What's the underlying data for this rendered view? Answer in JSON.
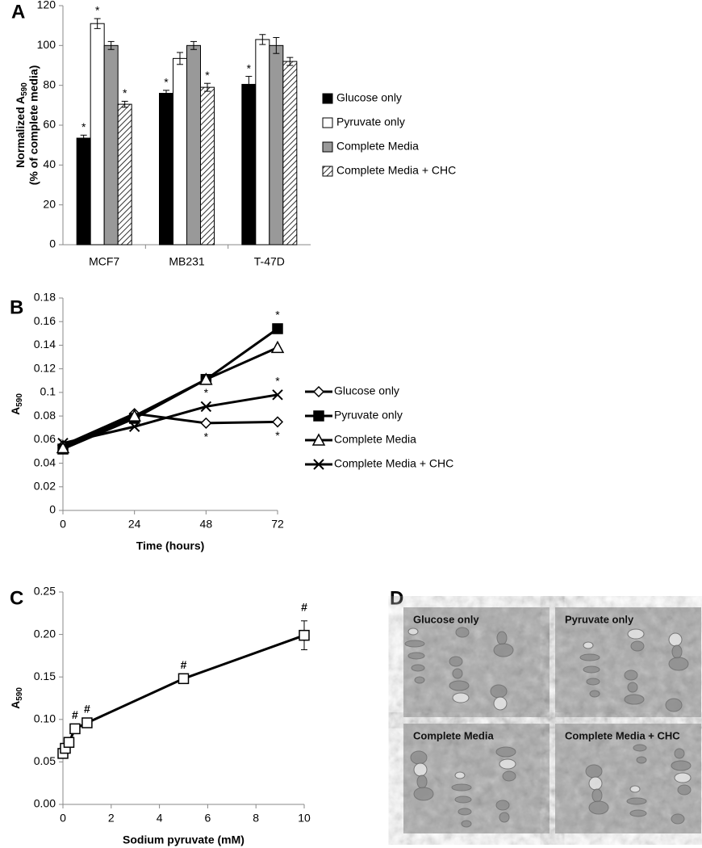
{
  "chart_data": [
    {
      "type": "bar",
      "panel": "A",
      "y_label": {
        "main": "Normalized A",
        "sub": "590",
        "line2": "(% of complete media)"
      },
      "categories": [
        "MCF7",
        "MB231",
        "T-47D"
      ],
      "series": [
        {
          "name": "Glucose only",
          "color": "#000000",
          "values": [
            53.5,
            76,
            80.5
          ],
          "errors": [
            1.5,
            1.5,
            4
          ],
          "sig_labels": [
            "*",
            "*",
            "*"
          ]
        },
        {
          "name": "Pyruvate only",
          "color": "#ffffff",
          "values": [
            111,
            93.5,
            103
          ],
          "errors": [
            2.5,
            3,
            2.5
          ],
          "sig_labels": [
            "*",
            null,
            null
          ]
        },
        {
          "name": "Complete Media",
          "color": "#999999",
          "values": [
            100,
            100,
            100
          ],
          "errors": [
            2,
            2,
            4
          ],
          "sig_labels": [
            null,
            null,
            null
          ]
        },
        {
          "name": "Complete Media + CHC",
          "color": "#ffffff",
          "pattern": "hatch",
          "values": [
            70.5,
            79,
            92
          ],
          "errors": [
            1.5,
            2,
            2
          ],
          "sig_labels": [
            "*",
            "*",
            null
          ]
        }
      ],
      "ylim": [
        0,
        120
      ],
      "yticks": [
        0,
        20,
        40,
        60,
        80,
        100,
        120
      ],
      "legend": "right"
    },
    {
      "type": "line",
      "panel": "B",
      "y_label": {
        "main": "A",
        "sub": "590"
      },
      "x_label": "Time (hours)",
      "x": [
        0,
        24,
        48,
        72
      ],
      "series": [
        {
          "name": "Glucose only",
          "color": "#000000",
          "marker": "diamond-open",
          "values": [
            0.055,
            0.082,
            0.074,
            0.075
          ],
          "sig_labels": [
            null,
            null,
            "*",
            "*"
          ],
          "sig_side": "below"
        },
        {
          "name": "Pyruvate only",
          "color": "#000000",
          "marker": "square-filled",
          "values": [
            0.052,
            0.078,
            0.111,
            0.154
          ],
          "sig_labels": [
            null,
            null,
            null,
            "*"
          ],
          "sig_side": "above"
        },
        {
          "name": "Complete Media",
          "color": "#000000",
          "marker": "triangle-open",
          "values": [
            0.053,
            0.08,
            0.111,
            0.138
          ],
          "sig_labels": [
            null,
            null,
            null,
            null
          ],
          "sig_side": "above"
        },
        {
          "name": "Complete Media + CHC",
          "color": "#000000",
          "marker": "x",
          "values": [
            0.057,
            0.071,
            0.088,
            0.098
          ],
          "sig_labels": [
            null,
            null,
            "*",
            "*"
          ],
          "sig_side": "above"
        }
      ],
      "xlim": [
        0,
        72
      ],
      "xticks": [
        0,
        24,
        48,
        72
      ],
      "ylim": [
        0,
        0.18
      ],
      "yticks": [
        0,
        0.02,
        0.04,
        0.06,
        0.08,
        0.1,
        0.12,
        0.14,
        0.16,
        0.18
      ],
      "legend": "right"
    },
    {
      "type": "line",
      "panel": "C",
      "y_label": {
        "main": "A",
        "sub": "590"
      },
      "x_label": "Sodium pyruvate (mM)",
      "x": [
        0,
        0.1,
        0.25,
        0.5,
        1,
        5,
        10
      ],
      "series": [
        {
          "color": "#000000",
          "marker": "square-open",
          "values": [
            0.06,
            0.066,
            0.073,
            0.089,
            0.096,
            0.148,
            0.199
          ],
          "errors": [
            null,
            null,
            null,
            null,
            null,
            null,
            0.017
          ],
          "sig_labels": [
            null,
            null,
            null,
            "#",
            "#",
            "#",
            "#"
          ],
          "sig_side": "above"
        }
      ],
      "xlim": [
        0,
        10
      ],
      "xticks": [
        0,
        2,
        4,
        6,
        8,
        10
      ],
      "ylim": [
        0,
        0.25
      ],
      "yticks": [
        {
          "value": 0,
          "label": "0.00"
        },
        {
          "value": 0.05,
          "label": "0.05"
        },
        {
          "value": 0.1,
          "label": "0.10"
        },
        {
          "value": 0.15,
          "label": "0.15"
        },
        {
          "value": 0.2,
          "label": "0.20"
        },
        {
          "value": 0.25,
          "label": "0.25"
        }
      ]
    }
  ],
  "panel_d": {
    "panel": "D",
    "images": [
      {
        "label": "Glucose only"
      },
      {
        "label": "Pyruvate only"
      },
      {
        "label": "Complete Media"
      },
      {
        "label": "Complete Media + CHC"
      }
    ]
  }
}
